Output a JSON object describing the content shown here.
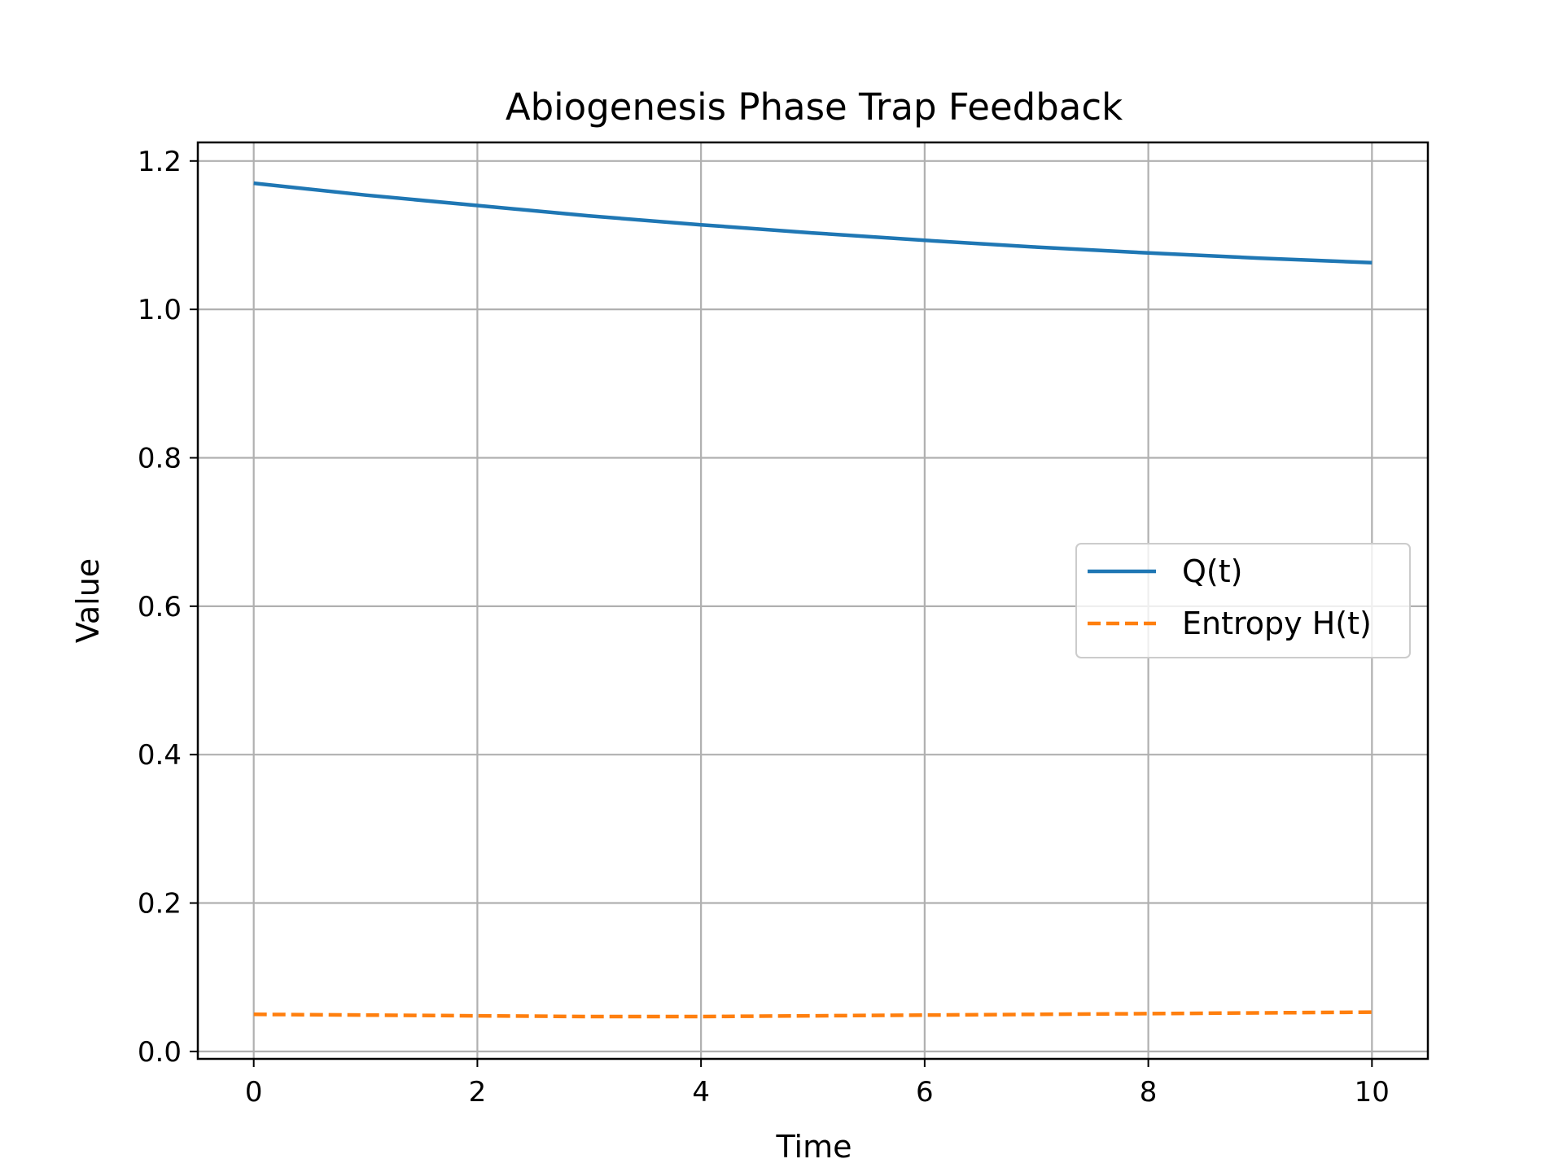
{
  "chart_data": {
    "type": "line",
    "title": "Abiogenesis Phase Trap Feedback",
    "xlabel": "Time",
    "ylabel": "Value",
    "xlim": [
      -0.5,
      10.5
    ],
    "ylim": [
      -0.01,
      1.225
    ],
    "xticks": [
      0,
      2,
      4,
      6,
      8,
      10
    ],
    "xtick_labels": [
      "0",
      "2",
      "4",
      "6",
      "8",
      "10"
    ],
    "yticks": [
      0.0,
      0.2,
      0.4,
      0.6,
      0.8,
      1.0,
      1.2
    ],
    "ytick_labels": [
      "0.0",
      "0.2",
      "0.4",
      "0.6",
      "0.8",
      "1.0",
      "1.2"
    ],
    "grid": true,
    "legend_position": "center-right",
    "x": [
      0,
      1,
      2,
      3,
      4,
      5,
      6,
      7,
      8,
      9,
      10
    ],
    "series": [
      {
        "name": "Q(t)",
        "color": "#1f77b4",
        "style": "solid",
        "values": [
          1.17,
          1.154,
          1.14,
          1.126,
          1.114,
          1.103,
          1.093,
          1.084,
          1.076,
          1.069,
          1.063
        ]
      },
      {
        "name": "Entropy H(t)",
        "color": "#ff7f0e",
        "style": "dashed",
        "values": [
          0.05,
          0.049,
          0.048,
          0.047,
          0.047,
          0.048,
          0.049,
          0.05,
          0.051,
          0.052,
          0.053
        ]
      }
    ]
  }
}
